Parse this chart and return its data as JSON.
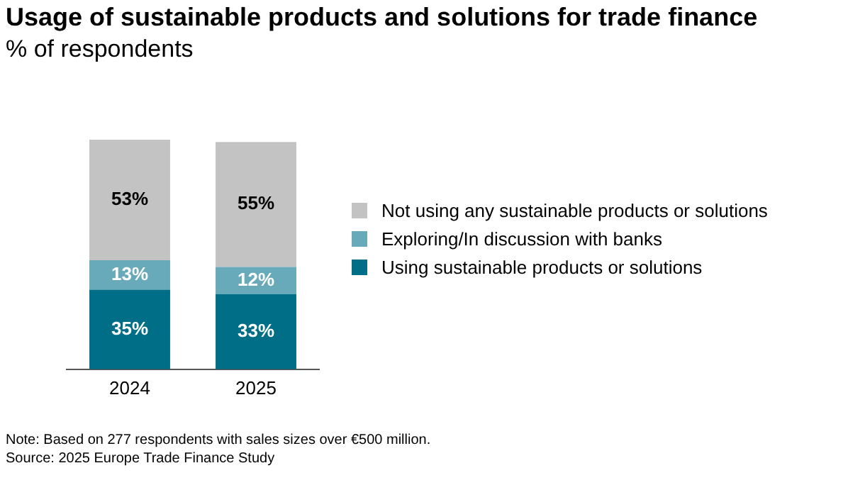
{
  "chart_data": {
    "type": "bar",
    "title": "Usage of sustainable products and solutions for trade finance",
    "subtitle": "% of respondents",
    "categories": [
      "2024",
      "2025"
    ],
    "series": [
      {
        "name": "Using sustainable products or solutions",
        "color": "#006e87",
        "values": [
          35,
          33
        ],
        "value_labels": [
          "35%",
          "33%"
        ]
      },
      {
        "name": "Exploring/In discussion with banks",
        "color": "#68a9ba",
        "values": [
          13,
          12
        ],
        "value_labels": [
          "13%",
          "12%"
        ]
      },
      {
        "name": "Not using any sustainable products or solutions",
        "color": "#c3c3c3",
        "values": [
          53,
          55
        ],
        "value_labels": [
          "53%",
          "55%"
        ]
      }
    ],
    "stacked": true,
    "legend": "right",
    "annotations": [
      "Note: Based on 277 respondents with sales sizes over €500 million.",
      "Source: 2025 Europe Trade Finance Study"
    ]
  }
}
